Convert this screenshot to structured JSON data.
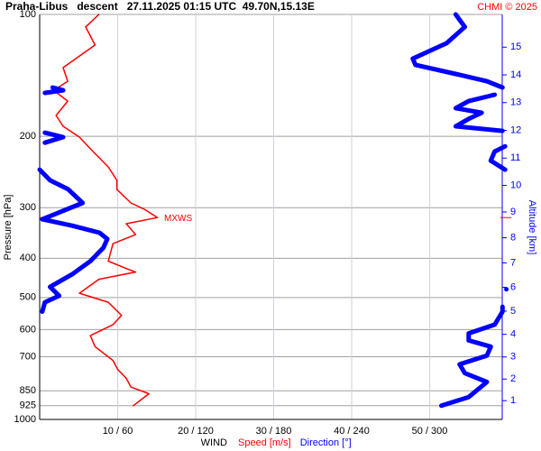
{
  "chart_data": {
    "type": "line",
    "title": "Praha-Libus   descent   27.11.2025 01:15 UTC  49.70N,15.13E",
    "copyright": "CHMI © 2025",
    "ylabel": "Pressure [hPa]",
    "y2label": "Altitude [km]",
    "xlabel": "WIND",
    "yscale": "log",
    "ylim": [
      1000,
      100
    ],
    "yticks": [
      100,
      200,
      300,
      400,
      500,
      600,
      700,
      850,
      925,
      1000
    ],
    "y2ticks": [
      1,
      2,
      3,
      4,
      5,
      6,
      7,
      8,
      9,
      10,
      11,
      12,
      13,
      14,
      15
    ],
    "xlim": [
      0,
      59.3
    ],
    "x2lim": [
      0,
      355.8
    ],
    "xticks": [
      {
        "value": 10,
        "label": "10 / 60"
      },
      {
        "value": 20,
        "label": "20 / 120"
      },
      {
        "value": 30,
        "label": "30 / 180"
      },
      {
        "value": 40,
        "label": "40 / 240"
      },
      {
        "value": 50,
        "label": "50 / 300"
      }
    ],
    "grid": true,
    "annotation": {
      "text": "MXWS",
      "y": 317.4
    },
    "series": [
      {
        "name": "Speed [m/s]",
        "color": "#ff0000",
        "axis": "x",
        "y": [
          100,
          107.4,
          119,
          135.3,
          146.2,
          153.9,
          163.7,
          177.6,
          188.9,
          200.9,
          214.6,
          238,
          256.8,
          270.3,
          292,
          302.6,
          317.4,
          328.6,
          349.6,
          368,
          406.6,
          424,
          432.6,
          450.7,
          488,
          513.8,
          553.3,
          583.3,
          620.9,
          661,
          715,
          752.4,
          791,
          832,
          864,
          925.2
        ],
        "values": [
          7.6,
          5.9,
          7.1,
          3.0,
          3.6,
          1.8,
          3.6,
          2.1,
          3.0,
          5.1,
          6.5,
          8.8,
          9.9,
          9.9,
          11.7,
          13.4,
          15.1,
          11.1,
          12.3,
          9.4,
          8.8,
          11.1,
          12.3,
          7.6,
          5.1,
          8.8,
          10.5,
          9.4,
          6.5,
          7.1,
          9.4,
          10.0,
          11.1,
          11.7,
          14.0,
          12.0
        ]
      },
      {
        "name": "Direction [°]",
        "color": "#0000ff",
        "axis": "x2",
        "y": [
          100,
          107.4,
          117.8,
          128.6,
          133.2,
          140.3,
          146.2,
          151.5,
          null,
          151.5,
          153.9,
          156.2,
          null,
          157.8,
          163.7,
          170.4,
          174.9,
          181.1,
          188.9,
          193.9,
          null,
          195.9,
          200.9,
          207.3,
          null,
          211.7,
          218,
          229.6,
          241.7,
          null,
          241.7,
          256.8,
          270.3,
          292,
          320.4,
          332.4,
          346,
          358.4,
          377.1,
          406.6,
          438.2,
          470.7,
          495.1,
          513.8,
          541.9,
          null,
          477,
          null,
          527,
          541.9,
          583.3,
          613.2,
          638.1,
          661,
          695.4,
          731.1,
          768.7,
          808.1,
          880.5,
          925.2
        ],
        "values": [
          320,
          327,
          313,
          287,
          289,
          320,
          344,
          356,
          null,
          10,
          18,
          4,
          null,
          350,
          330,
          320,
          340,
          330,
          320,
          356,
          null,
          4,
          18,
          4,
          null,
          358,
          350,
          347,
          358,
          null,
          0,
          8,
          22,
          33,
          2,
          25,
          46,
          52,
          49,
          39,
          25,
          8,
          15,
          4,
          2,
          null,
          359,
          null,
          356,
          356,
          350,
          330,
          330,
          347,
          344,
          323,
          327,
          344,
          330,
          309
        ]
      }
    ]
  }
}
